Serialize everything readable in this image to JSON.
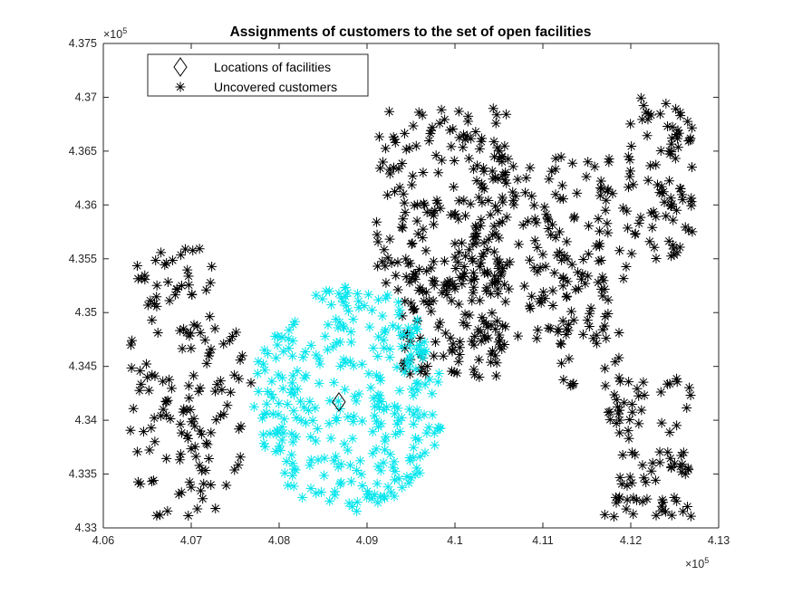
{
  "chart_data": {
    "type": "scatter",
    "title": "Assignments of customers to the set of open facilities",
    "xlabel": "",
    "ylabel": "",
    "xlim": [
      406000,
      413000
    ],
    "ylim": [
      433000,
      437500
    ],
    "x_exponent_label": "×10",
    "x_exponent_power": "5",
    "y_exponent_label": "×10",
    "y_exponent_power": "5",
    "x_ticks": [
      4.06,
      4.07,
      4.08,
      4.09,
      4.1,
      4.11,
      4.12,
      4.13
    ],
    "x_tick_labels": [
      "4.06",
      "4.07",
      "4.08",
      "4.09",
      "4.1",
      "4.11",
      "4.12",
      "4.13"
    ],
    "y_ticks": [
      4.33,
      4.335,
      4.34,
      4.345,
      4.35,
      4.355,
      4.36,
      4.365,
      4.37,
      4.375
    ],
    "y_tick_labels": [
      "4.33",
      "4.335",
      "4.34",
      "4.345",
      "4.35",
      "4.355",
      "4.36",
      "4.365",
      "4.37",
      "4.375"
    ],
    "grid": false,
    "legend_position": "top-left",
    "legend": [
      "Locations of facilities",
      "Uncovered customers"
    ],
    "series": [
      {
        "name": "Locations of facilities",
        "marker": "diamond",
        "color": "#000000",
        "points": [
          [
            408680,
            434170
          ]
        ]
      },
      {
        "name": "Uncovered customers",
        "marker": "asterisk",
        "color": "#000000",
        "regions": [
          {
            "x": [
              406300,
              407300
            ],
            "y": [
              433100,
              435600
            ],
            "n": 120
          },
          {
            "x": [
              407000,
              407700
            ],
            "y": [
              433200,
              434900
            ],
            "n": 35
          },
          {
            "x": [
              409100,
              410600
            ],
            "y": [
              435200,
              436900
            ],
            "n": 170
          },
          {
            "x": [
              409400,
              410600
            ],
            "y": [
              434400,
              435600
            ],
            "n": 120
          },
          {
            "x": [
              410200,
              411800
            ],
            "y": [
              434700,
              436500
            ],
            "n": 170
          },
          {
            "x": [
              411200,
              412000
            ],
            "y": [
              434300,
              435600
            ],
            "n": 30
          },
          {
            "x": [
              411900,
              412700
            ],
            "y": [
              435500,
              437000
            ],
            "n": 90
          },
          {
            "x": [
              411700,
              412700
            ],
            "y": [
              433100,
              434400
            ],
            "n": 90
          }
        ]
      },
      {
        "name": "",
        "marker": "asterisk",
        "color": "#00e5ee",
        "regions": [
          {
            "x": [
              407700,
              409900
            ],
            "y": [
              433150,
              435250
            ],
            "n": 320
          }
        ]
      }
    ]
  },
  "colors": {
    "axis": "#262626",
    "uncovered": "#000000",
    "covered": "#00e5ee",
    "background": "#ffffff"
  }
}
